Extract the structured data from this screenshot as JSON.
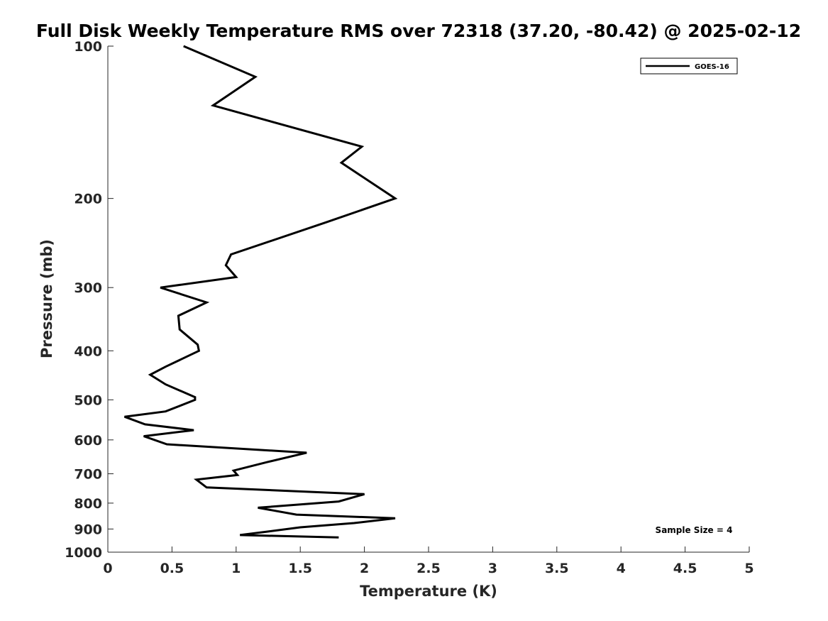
{
  "chart_data": {
    "type": "line",
    "title": "Full Disk Weekly Temperature RMS over 72318 (37.20, -80.42) @ 2025-02-12",
    "xlabel": "Temperature (K)",
    "ylabel": "Pressure (mb)",
    "xlim": [
      0,
      5
    ],
    "ylim": [
      1000,
      100
    ],
    "yscale": "log",
    "y_reversed": true,
    "xticks": [
      0,
      0.5,
      1,
      1.5,
      2,
      2.5,
      3,
      3.5,
      4,
      4.5,
      5
    ],
    "xtick_labels": [
      "0",
      "0.5",
      "1",
      "1.5",
      "2",
      "2.5",
      "3",
      "3.5",
      "4",
      "4.5",
      "5"
    ],
    "yticks": [
      100,
      200,
      300,
      400,
      500,
      600,
      700,
      800,
      900,
      1000
    ],
    "ytick_labels": [
      "100",
      "200",
      "300",
      "400",
      "500",
      "600",
      "700",
      "800",
      "900",
      "1000"
    ],
    "grid": false,
    "legend_position": "top-right",
    "annotation": "Sample Size = 4",
    "series": [
      {
        "name": "GOES-16",
        "color": "#000000",
        "points": [
          [
            0.59,
            100
          ],
          [
            1.15,
            115
          ],
          [
            0.82,
            131
          ],
          [
            1.98,
            158
          ],
          [
            1.82,
            170
          ],
          [
            2.24,
            200
          ],
          [
            1.7,
            223
          ],
          [
            0.96,
            258
          ],
          [
            0.92,
            271
          ],
          [
            1.0,
            286
          ],
          [
            0.41,
            300
          ],
          [
            0.77,
            321
          ],
          [
            0.55,
            341
          ],
          [
            0.56,
            363
          ],
          [
            0.7,
            389
          ],
          [
            0.71,
            400
          ],
          [
            0.45,
            430
          ],
          [
            0.33,
            446
          ],
          [
            0.45,
            466
          ],
          [
            0.68,
            494
          ],
          [
            0.68,
            500
          ],
          [
            0.45,
            527
          ],
          [
            0.13,
            540
          ],
          [
            0.29,
            559
          ],
          [
            0.67,
            574
          ],
          [
            0.28,
            590
          ],
          [
            0.46,
            612
          ],
          [
            1.55,
            636
          ],
          [
            1.24,
            664
          ],
          [
            0.98,
            690
          ],
          [
            1.01,
            704
          ],
          [
            0.69,
            719
          ],
          [
            0.77,
            745
          ],
          [
            2.0,
            768
          ],
          [
            1.8,
            794
          ],
          [
            1.17,
            817
          ],
          [
            1.47,
            843
          ],
          [
            2.24,
            857
          ],
          [
            1.92,
            876
          ],
          [
            1.5,
            893
          ],
          [
            1.24,
            911
          ],
          [
            1.03,
            925
          ],
          [
            1.8,
            935
          ]
        ]
      }
    ]
  }
}
